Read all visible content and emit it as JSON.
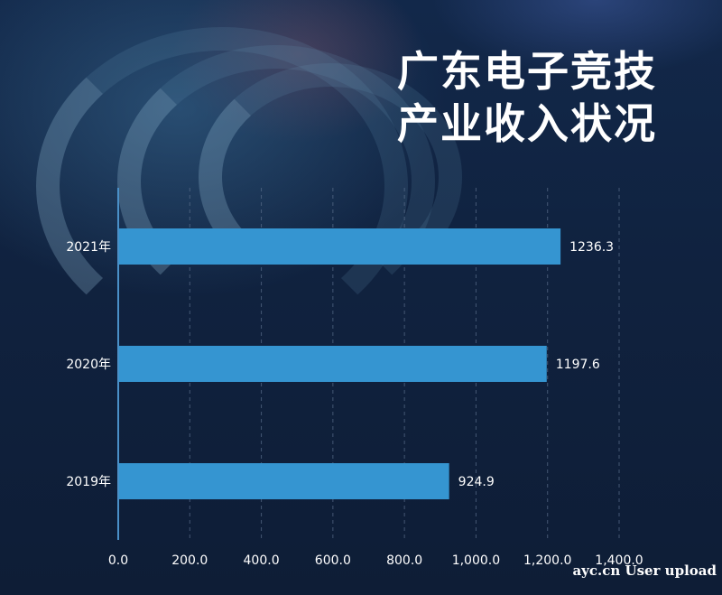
{
  "title_lines": [
    "广东电子竞技",
    "产业收入状况"
  ],
  "watermark": "ayc.cn User upload",
  "colors": {
    "bar": "#3595d1",
    "axis": "#4a90c8",
    "grid": "#5b6f8c",
    "text": "#ffffff"
  },
  "chart_data": {
    "type": "bar",
    "orientation": "horizontal",
    "categories": [
      "2021年",
      "2020年",
      "2019年"
    ],
    "values": [
      1236.3,
      1197.6,
      924.9
    ],
    "value_labels": [
      "1236.3",
      "1197.6",
      "924.9"
    ],
    "x_ticks": [
      "0.0",
      "200.0",
      "400.0",
      "600.0",
      "800.0",
      "1,000.0",
      "1,200.0",
      "1,400.0"
    ],
    "xlim": [
      0,
      1400
    ],
    "grid": "vertical-dashed",
    "title": "广东电子竞技产业收入状况",
    "xlabel": "",
    "ylabel": ""
  }
}
